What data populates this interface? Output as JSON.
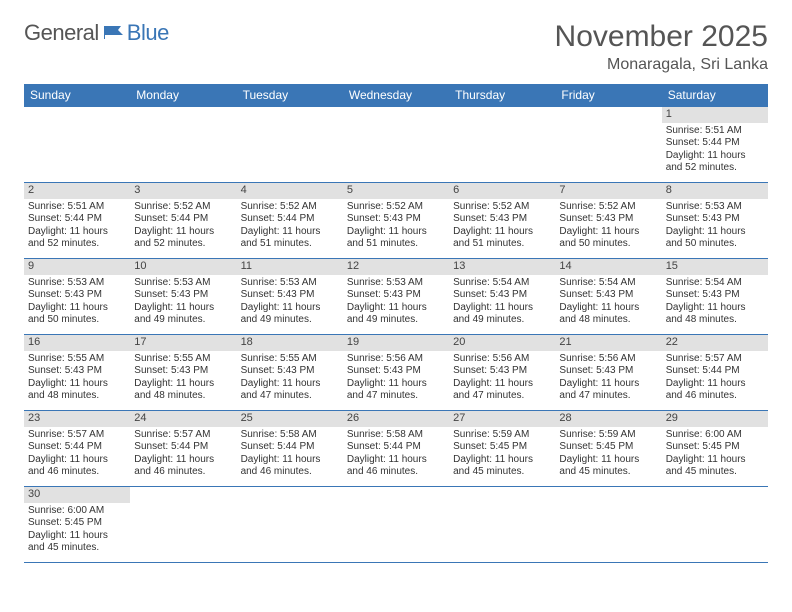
{
  "logo": {
    "part1": "General",
    "part2": "Blue"
  },
  "title": "November 2025",
  "location": "Monaragala, Sri Lanka",
  "colors": {
    "header_bg": "#3a76b6",
    "header_text": "#ffffff",
    "daynum_bg": "#e1e1e1",
    "border": "#3a76b6",
    "page_bg": "#ffffff",
    "text": "#333333",
    "title_color": "#555555"
  },
  "typography": {
    "title_fontsize": 30,
    "location_fontsize": 16,
    "logo_fontsize": 22,
    "dayheader_fontsize": 12,
    "daynum_fontsize": 11,
    "cell_fontsize": 10
  },
  "day_headers": [
    "Sunday",
    "Monday",
    "Tuesday",
    "Wednesday",
    "Thursday",
    "Friday",
    "Saturday"
  ],
  "weeks": [
    {
      "nums": [
        "",
        "",
        "",
        "",
        "",
        "",
        "1"
      ],
      "cells": [
        "",
        "",
        "",
        "",
        "",
        "",
        "Sunrise: 5:51 AM\nSunset: 5:44 PM\nDaylight: 11 hours and 52 minutes."
      ]
    },
    {
      "nums": [
        "2",
        "3",
        "4",
        "5",
        "6",
        "7",
        "8"
      ],
      "cells": [
        "Sunrise: 5:51 AM\nSunset: 5:44 PM\nDaylight: 11 hours and 52 minutes.",
        "Sunrise: 5:52 AM\nSunset: 5:44 PM\nDaylight: 11 hours and 52 minutes.",
        "Sunrise: 5:52 AM\nSunset: 5:44 PM\nDaylight: 11 hours and 51 minutes.",
        "Sunrise: 5:52 AM\nSunset: 5:43 PM\nDaylight: 11 hours and 51 minutes.",
        "Sunrise: 5:52 AM\nSunset: 5:43 PM\nDaylight: 11 hours and 51 minutes.",
        "Sunrise: 5:52 AM\nSunset: 5:43 PM\nDaylight: 11 hours and 50 minutes.",
        "Sunrise: 5:53 AM\nSunset: 5:43 PM\nDaylight: 11 hours and 50 minutes."
      ]
    },
    {
      "nums": [
        "9",
        "10",
        "11",
        "12",
        "13",
        "14",
        "15"
      ],
      "cells": [
        "Sunrise: 5:53 AM\nSunset: 5:43 PM\nDaylight: 11 hours and 50 minutes.",
        "Sunrise: 5:53 AM\nSunset: 5:43 PM\nDaylight: 11 hours and 49 minutes.",
        "Sunrise: 5:53 AM\nSunset: 5:43 PM\nDaylight: 11 hours and 49 minutes.",
        "Sunrise: 5:53 AM\nSunset: 5:43 PM\nDaylight: 11 hours and 49 minutes.",
        "Sunrise: 5:54 AM\nSunset: 5:43 PM\nDaylight: 11 hours and 49 minutes.",
        "Sunrise: 5:54 AM\nSunset: 5:43 PM\nDaylight: 11 hours and 48 minutes.",
        "Sunrise: 5:54 AM\nSunset: 5:43 PM\nDaylight: 11 hours and 48 minutes."
      ]
    },
    {
      "nums": [
        "16",
        "17",
        "18",
        "19",
        "20",
        "21",
        "22"
      ],
      "cells": [
        "Sunrise: 5:55 AM\nSunset: 5:43 PM\nDaylight: 11 hours and 48 minutes.",
        "Sunrise: 5:55 AM\nSunset: 5:43 PM\nDaylight: 11 hours and 48 minutes.",
        "Sunrise: 5:55 AM\nSunset: 5:43 PM\nDaylight: 11 hours and 47 minutes.",
        "Sunrise: 5:56 AM\nSunset: 5:43 PM\nDaylight: 11 hours and 47 minutes.",
        "Sunrise: 5:56 AM\nSunset: 5:43 PM\nDaylight: 11 hours and 47 minutes.",
        "Sunrise: 5:56 AM\nSunset: 5:43 PM\nDaylight: 11 hours and 47 minutes.",
        "Sunrise: 5:57 AM\nSunset: 5:44 PM\nDaylight: 11 hours and 46 minutes."
      ]
    },
    {
      "nums": [
        "23",
        "24",
        "25",
        "26",
        "27",
        "28",
        "29"
      ],
      "cells": [
        "Sunrise: 5:57 AM\nSunset: 5:44 PM\nDaylight: 11 hours and 46 minutes.",
        "Sunrise: 5:57 AM\nSunset: 5:44 PM\nDaylight: 11 hours and 46 minutes.",
        "Sunrise: 5:58 AM\nSunset: 5:44 PM\nDaylight: 11 hours and 46 minutes.",
        "Sunrise: 5:58 AM\nSunset: 5:44 PM\nDaylight: 11 hours and 46 minutes.",
        "Sunrise: 5:59 AM\nSunset: 5:45 PM\nDaylight: 11 hours and 45 minutes.",
        "Sunrise: 5:59 AM\nSunset: 5:45 PM\nDaylight: 11 hours and 45 minutes.",
        "Sunrise: 6:00 AM\nSunset: 5:45 PM\nDaylight: 11 hours and 45 minutes."
      ]
    },
    {
      "nums": [
        "30",
        "",
        "",
        "",
        "",
        "",
        ""
      ],
      "cells": [
        "Sunrise: 6:00 AM\nSunset: 5:45 PM\nDaylight: 11 hours and 45 minutes.",
        "",
        "",
        "",
        "",
        "",
        ""
      ]
    }
  ]
}
